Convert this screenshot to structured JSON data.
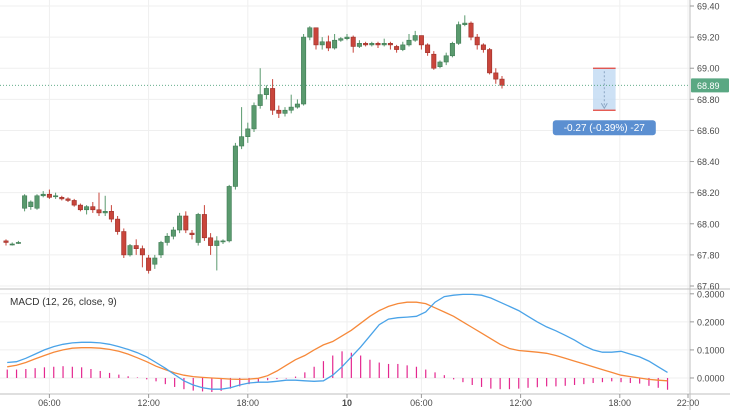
{
  "chart_data": [
    {
      "type": "candlestick",
      "ylim": [
        67.6,
        69.4
      ],
      "yticks": [
        "69.40",
        "69.20",
        "69.00",
        "68.80",
        "68.60",
        "68.40",
        "68.20",
        "68.00",
        "67.80",
        "67.60"
      ],
      "last_price_label": "68.89",
      "last_price": 68.89,
      "measure_label": "-0.27 (-0.39%) -27",
      "measure": {
        "from": 69.0,
        "to": 68.73,
        "candle_start": 95,
        "candle_end": 98
      },
      "xticks": [
        {
          "label": "06:00",
          "index": 7
        },
        {
          "label": "12:00",
          "index": 23
        },
        {
          "label": "18:00",
          "index": 39
        },
        {
          "label": "10",
          "index": 55,
          "bold": true
        },
        {
          "label": "06:00",
          "index": 67
        },
        {
          "label": "12:00",
          "index": 83
        },
        {
          "label": "18:00",
          "index": 99
        },
        {
          "label": "22:00",
          "index": 110
        }
      ],
      "candles": [
        [
          67.89,
          67.88,
          67.9,
          67.86
        ],
        [
          67.87,
          67.87,
          67.88,
          67.86
        ],
        [
          67.88,
          67.88,
          67.89,
          67.87
        ],
        [
          68.1,
          68.18,
          68.19,
          68.08
        ],
        [
          68.11,
          68.14,
          68.15,
          68.09
        ],
        [
          68.1,
          68.18,
          68.19,
          68.09
        ],
        [
          68.18,
          68.19,
          68.21,
          68.17
        ],
        [
          68.19,
          68.17,
          68.22,
          68.16
        ],
        [
          68.18,
          68.18,
          68.2,
          68.16
        ],
        [
          68.17,
          68.16,
          68.18,
          68.15
        ],
        [
          68.16,
          68.15,
          68.17,
          68.14
        ],
        [
          68.15,
          68.12,
          68.16,
          68.11
        ],
        [
          68.12,
          68.09,
          68.13,
          68.08
        ],
        [
          68.09,
          68.11,
          68.12,
          68.06
        ],
        [
          68.11,
          68.09,
          68.14,
          68.07
        ],
        [
          68.09,
          68.07,
          68.2,
          68.05
        ],
        [
          68.07,
          68.08,
          68.18,
          68.05
        ],
        [
          68.08,
          68.03,
          68.12,
          68.01
        ],
        [
          68.03,
          67.95,
          68.05,
          67.93
        ],
        [
          67.95,
          67.8,
          67.97,
          67.78
        ],
        [
          67.8,
          67.86,
          67.87,
          67.79
        ],
        [
          67.86,
          67.84,
          67.9,
          67.8
        ],
        [
          67.84,
          67.8,
          67.86,
          67.72
        ],
        [
          67.78,
          67.7,
          67.8,
          67.68
        ],
        [
          67.74,
          67.78,
          67.8,
          67.71
        ],
        [
          67.8,
          67.88,
          67.89,
          67.78
        ],
        [
          67.88,
          67.92,
          67.94,
          67.86
        ],
        [
          67.92,
          67.96,
          67.98,
          67.9
        ],
        [
          67.96,
          68.05,
          68.07,
          67.94
        ],
        [
          68.05,
          67.96,
          68.08,
          67.94
        ],
        [
          67.94,
          67.93,
          67.96,
          67.9
        ],
        [
          67.88,
          68.06,
          68.07,
          67.86
        ],
        [
          68.06,
          67.91,
          68.12,
          67.89
        ],
        [
          67.91,
          67.86,
          67.94,
          67.8
        ],
        [
          67.86,
          67.89,
          67.92,
          67.7
        ],
        [
          67.89,
          67.89,
          67.9,
          67.87
        ],
        [
          67.89,
          68.24,
          68.25,
          67.88
        ],
        [
          68.24,
          68.5,
          68.52,
          68.22
        ],
        [
          68.5,
          68.56,
          68.75,
          68.48
        ],
        [
          68.56,
          68.61,
          68.65,
          68.52
        ],
        [
          68.61,
          68.76,
          68.78,
          68.59
        ],
        [
          68.76,
          68.83,
          69.0,
          68.74
        ],
        [
          68.83,
          68.87,
          68.89,
          68.8
        ],
        [
          68.87,
          68.73,
          68.93,
          68.7
        ],
        [
          68.73,
          68.71,
          68.76,
          68.68
        ],
        [
          68.71,
          68.73,
          68.75,
          68.69
        ],
        [
          68.73,
          68.75,
          68.83,
          68.71
        ],
        [
          68.75,
          68.77,
          68.8,
          68.74
        ],
        [
          68.77,
          69.2,
          69.22,
          68.76
        ],
        [
          69.2,
          69.26,
          69.27,
          69.18
        ],
        [
          69.26,
          69.15,
          69.25,
          69.12
        ],
        [
          69.15,
          69.17,
          69.2,
          69.12
        ],
        [
          69.17,
          69.13,
          69.21,
          69.11
        ],
        [
          69.13,
          69.18,
          69.22,
          69.12
        ],
        [
          69.18,
          69.19,
          69.2,
          69.17
        ],
        [
          69.19,
          69.2,
          69.22,
          69.18
        ],
        [
          69.2,
          69.14,
          69.21,
          69.1
        ],
        [
          69.14,
          69.16,
          69.18,
          69.13
        ],
        [
          69.16,
          69.15,
          69.17,
          69.14
        ],
        [
          69.15,
          69.16,
          69.17,
          69.14
        ],
        [
          69.16,
          69.15,
          69.17,
          69.13
        ],
        [
          69.15,
          69.16,
          69.19,
          69.14
        ],
        [
          69.16,
          69.15,
          69.17,
          69.12
        ],
        [
          69.14,
          69.12,
          69.15,
          69.1
        ],
        [
          69.12,
          69.15,
          69.17,
          69.11
        ],
        [
          69.15,
          69.18,
          69.22,
          69.14
        ],
        [
          69.18,
          69.21,
          69.24,
          69.17
        ],
        [
          69.21,
          69.15,
          69.21,
          69.12
        ],
        [
          69.15,
          69.1,
          69.16,
          69.08
        ],
        [
          69.09,
          69.0,
          69.11,
          68.99
        ],
        [
          69.01,
          69.04,
          69.05,
          69.0
        ],
        [
          69.04,
          69.08,
          69.1,
          69.02
        ],
        [
          69.08,
          69.16,
          69.17,
          69.07
        ],
        [
          69.16,
          69.28,
          69.3,
          69.15
        ],
        [
          69.28,
          69.29,
          69.34,
          69.27
        ],
        [
          69.29,
          69.2,
          69.3,
          69.18
        ],
        [
          69.2,
          69.15,
          69.22,
          69.12
        ],
        [
          69.15,
          69.12,
          69.16,
          69.1
        ],
        [
          69.12,
          68.97,
          69.13,
          68.96
        ],
        [
          68.97,
          68.93,
          69.0,
          68.9
        ],
        [
          68.93,
          68.89,
          68.95,
          68.87
        ]
      ]
    },
    {
      "type": "line",
      "title": "MACD (12, 26, close, 9)",
      "ylim": [
        -0.05,
        0.31
      ],
      "yticks": [
        "0.3000",
        "0.2000",
        "0.1000",
        "0.0000"
      ],
      "macd": [
        0.055,
        0.058,
        0.07,
        0.085,
        0.1,
        0.112,
        0.12,
        0.125,
        0.127,
        0.127,
        0.125,
        0.12,
        0.112,
        0.102,
        0.09,
        0.075,
        0.055,
        0.035,
        0.012,
        -0.01,
        -0.025,
        -0.035,
        -0.04,
        -0.04,
        -0.035,
        -0.025,
        -0.018,
        -0.015,
        -0.015,
        -0.012,
        -0.008,
        -0.008,
        -0.01,
        -0.012,
        -0.01,
        0.01,
        0.04,
        0.075,
        0.11,
        0.15,
        0.19,
        0.21,
        0.215,
        0.217,
        0.22,
        0.235,
        0.27,
        0.29,
        0.295,
        0.298,
        0.298,
        0.295,
        0.285,
        0.27,
        0.255,
        0.24,
        0.22,
        0.2,
        0.182,
        0.168,
        0.152,
        0.135,
        0.115,
        0.1,
        0.092,
        0.092,
        0.095,
        0.085,
        0.075,
        0.06,
        0.04,
        0.02
      ],
      "signal": [
        0.04,
        0.045,
        0.055,
        0.068,
        0.08,
        0.092,
        0.1,
        0.106,
        0.108,
        0.108,
        0.106,
        0.102,
        0.095,
        0.085,
        0.072,
        0.058,
        0.042,
        0.03,
        0.018,
        0.01,
        0.005,
        0.002,
        0.0,
        -0.002,
        -0.004,
        -0.005,
        -0.004,
        -0.001,
        0.008,
        0.025,
        0.045,
        0.065,
        0.08,
        0.1,
        0.118,
        0.13,
        0.15,
        0.17,
        0.195,
        0.22,
        0.24,
        0.255,
        0.265,
        0.27,
        0.27,
        0.265,
        0.25,
        0.235,
        0.22,
        0.2,
        0.18,
        0.16,
        0.14,
        0.12,
        0.105,
        0.098,
        0.095,
        0.092,
        0.088,
        0.08,
        0.07,
        0.06,
        0.05,
        0.04,
        0.03,
        0.02,
        0.01,
        0.005,
        0.0,
        -0.005,
        -0.008,
        -0.01
      ],
      "histogram": [
        0.03,
        0.03,
        0.032,
        0.035,
        0.038,
        0.04,
        0.042,
        0.04,
        0.038,
        0.032,
        0.025,
        0.018,
        0.012,
        0.006,
        0.002,
        -0.005,
        -0.012,
        -0.022,
        -0.032,
        -0.04,
        -0.045,
        -0.048,
        -0.05,
        -0.046,
        -0.038,
        -0.03,
        -0.022,
        -0.015,
        -0.008,
        -0.004,
        -0.002,
        0.005,
        0.02,
        0.04,
        0.06,
        0.08,
        0.095,
        0.09,
        0.08,
        0.065,
        0.055,
        0.05,
        0.05,
        0.045,
        0.04,
        0.03,
        0.02,
        0.01,
        -0.005,
        -0.015,
        -0.025,
        -0.032,
        -0.038,
        -0.04,
        -0.04,
        -0.038,
        -0.035,
        -0.033,
        -0.03,
        -0.03,
        -0.028,
        -0.025,
        -0.022,
        -0.018,
        -0.015,
        -0.012,
        -0.015,
        -0.018,
        -0.02,
        -0.028,
        -0.035,
        -0.042
      ],
      "colors": {
        "macd": "#4aa3e8",
        "signal": "#f6893a",
        "histogram": "#e4278f"
      }
    }
  ],
  "colors": {
    "up": "#5a9a6e",
    "down": "#c9453b",
    "price_line": "#4ea07a",
    "price_tag": "#5aa883",
    "measure_fill": "#bcd7f2",
    "measure_tag": "#5b8fd1",
    "grid": "#efefef",
    "axis_text": "#4a4a4a"
  }
}
